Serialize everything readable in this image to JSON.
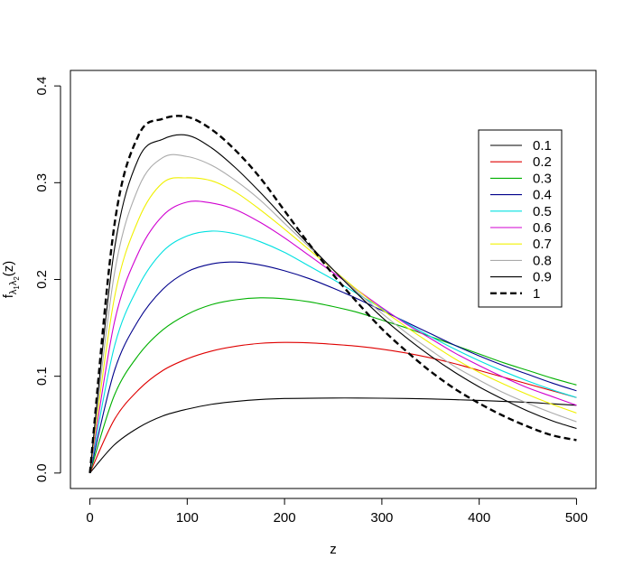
{
  "chart_data": {
    "type": "line",
    "title": "",
    "xlabel": "z",
    "ylabel": {
      "main": "f",
      "sub1": "λ",
      "sub1_index": "1",
      "sub2": "λ",
      "sub2_index": "2",
      "tail": "(z)"
    },
    "xlim": [
      -20,
      520
    ],
    "ylim": [
      -0.016,
      0.416
    ],
    "xticks": [
      0,
      100,
      200,
      300,
      400,
      500
    ],
    "xtick_labels": [
      "0",
      "100",
      "200",
      "300",
      "400",
      "500"
    ],
    "yticks": [
      0.0,
      0.1,
      0.2,
      0.3,
      0.4
    ],
    "ytick_labels": [
      "0.0",
      "0.1",
      "0.2",
      "0.3",
      "0.4"
    ],
    "grid": false,
    "legend_position": "top-right",
    "x": [
      0,
      25,
      50,
      75,
      100,
      125,
      150,
      175,
      200,
      225,
      250,
      275,
      300,
      325,
      350,
      375,
      400,
      425,
      450,
      475,
      500
    ],
    "series": [
      {
        "name": "0.1",
        "color": "#000000",
        "dashed": false,
        "values": [
          0.0,
          0.029,
          0.047,
          0.059,
          0.066,
          0.071,
          0.074,
          0.076,
          0.077,
          0.0772,
          0.0775,
          0.0775,
          0.0773,
          0.077,
          0.0765,
          0.0758,
          0.075,
          0.074,
          0.073,
          0.0715,
          0.07
        ]
      },
      {
        "name": "0.2",
        "color": "#df0000",
        "dashed": false,
        "values": [
          0.0,
          0.055,
          0.086,
          0.106,
          0.118,
          0.126,
          0.131,
          0.134,
          0.135,
          0.1345,
          0.133,
          0.131,
          0.128,
          0.124,
          0.119,
          0.113,
          0.106,
          0.099,
          0.092,
          0.085,
          0.078
        ]
      },
      {
        "name": "0.3",
        "color": "#00b000",
        "dashed": false,
        "values": [
          0.0,
          0.08,
          0.122,
          0.148,
          0.164,
          0.174,
          0.179,
          0.181,
          0.18,
          0.177,
          0.172,
          0.166,
          0.158,
          0.15,
          0.141,
          0.132,
          0.123,
          0.114,
          0.106,
          0.098,
          0.091
        ]
      },
      {
        "name": "0.4",
        "color": "#00008b",
        "dashed": false,
        "values": [
          0.0,
          0.105,
          0.158,
          0.19,
          0.208,
          0.216,
          0.218,
          0.215,
          0.209,
          0.201,
          0.191,
          0.18,
          0.168,
          0.156,
          0.144,
          0.132,
          0.121,
          0.111,
          0.102,
          0.093,
          0.085
        ]
      },
      {
        "name": "0.5",
        "color": "#00e0e0",
        "dashed": false,
        "values": [
          0.0,
          0.13,
          0.193,
          0.229,
          0.245,
          0.25,
          0.247,
          0.239,
          0.228,
          0.214,
          0.2,
          0.185,
          0.17,
          0.155,
          0.141,
          0.128,
          0.116,
          0.105,
          0.095,
          0.086,
          0.078
        ]
      },
      {
        "name": "0.6",
        "color": "#d000d0",
        "dashed": false,
        "values": [
          0.0,
          0.155,
          0.228,
          0.266,
          0.28,
          0.279,
          0.272,
          0.259,
          0.243,
          0.225,
          0.207,
          0.189,
          0.171,
          0.154,
          0.139,
          0.124,
          0.111,
          0.099,
          0.088,
          0.079,
          0.07
        ]
      },
      {
        "name": "0.7",
        "color": "#f0f000",
        "dashed": false,
        "values": [
          0.0,
          0.18,
          0.262,
          0.3,
          0.305,
          0.302,
          0.29,
          0.272,
          0.252,
          0.231,
          0.21,
          0.189,
          0.169,
          0.151,
          0.134,
          0.118,
          0.104,
          0.092,
          0.081,
          0.071,
          0.062
        ]
      },
      {
        "name": "0.8",
        "color": "#aaaaaa",
        "dashed": false,
        "values": [
          0.0,
          0.205,
          0.295,
          0.326,
          0.327,
          0.318,
          0.302,
          0.282,
          0.258,
          0.234,
          0.21,
          0.187,
          0.165,
          0.145,
          0.127,
          0.11,
          0.096,
          0.083,
          0.072,
          0.062,
          0.053
        ]
      },
      {
        "name": "0.9",
        "color": "#000000",
        "dashed": false,
        "values": [
          0.0,
          0.23,
          0.325,
          0.345,
          0.349,
          0.336,
          0.315,
          0.29,
          0.263,
          0.236,
          0.21,
          0.185,
          0.161,
          0.14,
          0.121,
          0.104,
          0.089,
          0.076,
          0.064,
          0.054,
          0.046
        ]
      },
      {
        "name": "1",
        "color": "#000000",
        "dashed": true,
        "values": [
          0.0,
          0.255,
          0.349,
          0.366,
          0.368,
          0.355,
          0.333,
          0.305,
          0.271,
          0.237,
          0.205,
          0.176,
          0.149,
          0.126,
          0.105,
          0.087,
          0.072,
          0.059,
          0.048,
          0.039,
          0.034
        ]
      }
    ]
  }
}
